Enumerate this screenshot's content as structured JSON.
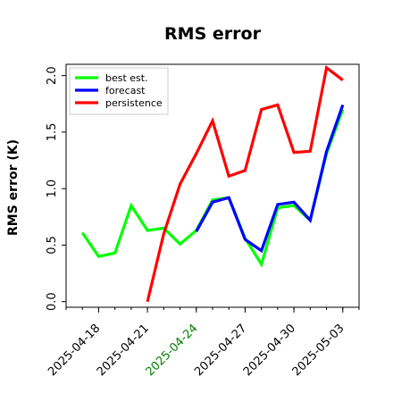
{
  "chart_data": {
    "type": "line",
    "title": "RMS error",
    "xlabel": "",
    "ylabel": "RMS error (K)",
    "xlim": [
      "2025-04-16",
      "2025-05-04"
    ],
    "ylim": [
      -0.05,
      2.1
    ],
    "yticks": [
      {
        "value": 0.0,
        "label": "0.0"
      },
      {
        "value": 0.5,
        "label": "0.5"
      },
      {
        "value": 1.0,
        "label": "1.0"
      },
      {
        "value": 1.5,
        "label": "1.5"
      },
      {
        "value": 2.0,
        "label": "2.0"
      }
    ],
    "xticks": [
      {
        "date": "2025-04-18",
        "label": "2025-04-18",
        "color": "#000000"
      },
      {
        "date": "2025-04-21",
        "label": "2025-04-21",
        "color": "#000000"
      },
      {
        "date": "2025-04-24",
        "label": "2025-04-24",
        "color": "#008000"
      },
      {
        "date": "2025-04-27",
        "label": "2025-04-27",
        "color": "#000000"
      },
      {
        "date": "2025-04-30",
        "label": "2025-04-30",
        "color": "#000000"
      },
      {
        "date": "2025-05-03",
        "label": "2025-05-03",
        "color": "#000000"
      }
    ],
    "minor_tick_days": 1,
    "legend_position": "upper-left",
    "grid": false,
    "series": [
      {
        "name": "best est.",
        "color": "#00ff00",
        "x": [
          "2025-04-17",
          "2025-04-18",
          "2025-04-19",
          "2025-04-20",
          "2025-04-21",
          "2025-04-22",
          "2025-04-23",
          "2025-04-24",
          "2025-04-25",
          "2025-04-26",
          "2025-04-27",
          "2025-04-28",
          "2025-04-29",
          "2025-04-30",
          "2025-05-01",
          "2025-05-02",
          "2025-05-03"
        ],
        "y": [
          0.61,
          0.4,
          0.43,
          0.85,
          0.63,
          0.65,
          0.51,
          0.63,
          0.9,
          0.92,
          0.56,
          0.33,
          0.83,
          0.85,
          0.72,
          1.31,
          1.7
        ]
      },
      {
        "name": "forecast",
        "color": "#0000ff",
        "x": [
          "2025-04-24",
          "2025-04-25",
          "2025-04-26",
          "2025-04-27",
          "2025-04-28",
          "2025-04-29",
          "2025-04-30",
          "2025-05-01",
          "2025-05-02",
          "2025-05-03"
        ],
        "y": [
          0.62,
          0.88,
          0.92,
          0.55,
          0.45,
          0.86,
          0.88,
          0.72,
          1.33,
          1.74
        ]
      },
      {
        "name": "persistence",
        "color": "#ff0000",
        "x": [
          "2025-04-21",
          "2025-04-22",
          "2025-04-23",
          "2025-04-24",
          "2025-04-25",
          "2025-04-26",
          "2025-04-27",
          "2025-04-28",
          "2025-04-29",
          "2025-04-30",
          "2025-05-01",
          "2025-05-02",
          "2025-05-03"
        ],
        "y": [
          0.0,
          0.6,
          1.04,
          1.31,
          1.6,
          1.11,
          1.16,
          1.7,
          1.74,
          1.32,
          1.33,
          2.07,
          1.96
        ]
      }
    ]
  }
}
